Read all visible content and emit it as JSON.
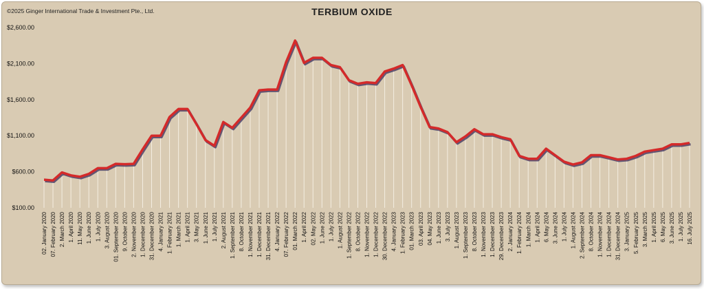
{
  "copyright": "©2025 Ginger International Trade & Investment Pte., Ltd.",
  "chart_data": {
    "type": "line",
    "title": "TERBIUM OXIDE",
    "xlabel": "",
    "ylabel": "",
    "ylim": [
      100,
      2600
    ],
    "yticks": [
      "$100.00",
      "$600.00",
      "$1,100.00",
      "$1,600.00",
      "$2,100.00",
      "$2,600.00"
    ],
    "ytick_values": [
      100,
      600,
      1100,
      1600,
      2100,
      2600
    ],
    "grid": "vertical drop lines",
    "line_color": "#d42a2a",
    "shadow_color": "#3a2d5c",
    "categories": [
      "02. January 2020",
      "07. February 2020",
      "2. March 2020",
      "1. April 2020",
      "11. May 2020",
      "1. June 2020",
      "1. July 2020",
      "3. August 2020",
      "01. September 2020",
      "9. October 2020",
      "2. November 2020",
      "1. December 2020",
      "31. December 2020",
      "4. January 2021",
      "1. February 2021",
      "1. March 2021",
      "1. April 2021",
      "3. May 2021",
      "1. June 2021",
      "1. July 2021",
      "2. August 2021",
      "1. September 2021",
      "8. October 2021",
      "1. November 2021",
      "1. December 2021",
      "31. December 2021",
      "4. January 2022",
      "07. February 2022",
      "01. March 2022",
      "1. April 2022",
      "02. May 2022",
      "1. June 2022",
      "1. July 2022",
      "1. August 2022",
      "1. September 2022",
      "8. October 2022",
      "1. November 2022",
      "1. December 2022",
      "30. December 2022",
      "4. January 2023",
      "1. February 2023",
      "01. March 2023",
      "03. April 2023",
      "04. May 2023",
      "1. June 2023",
      "3. July 2023",
      "1. August 2023",
      "1. September 2023",
      "8. October 2023",
      "1. November 2023",
      "1. December 2023",
      "29. December 2023",
      "2. January 2024",
      "1. February 2024",
      "1. March 2024",
      "1. April 2024",
      "6. May 2024",
      "3. June 2024",
      "1. July 2024",
      "1. August 2024",
      "2. September 2024",
      "8. October 2024",
      "1. November 2024",
      "1. December 2024",
      "31. December 2024",
      "3. January 2025",
      "5. February 2025",
      "3. March 2025",
      "1. April 2025",
      "6. May 2025",
      "3. June 2025",
      "1. July 2025",
      "16. July 2025"
    ],
    "values": [
      490,
      480,
      590,
      550,
      530,
      570,
      650,
      650,
      710,
      705,
      710,
      910,
      1100,
      1100,
      1360,
      1470,
      1470,
      1260,
      1040,
      960,
      1290,
      1210,
      1350,
      1490,
      1730,
      1740,
      1740,
      2120,
      2420,
      2110,
      2180,
      2180,
      2080,
      2050,
      1870,
      1820,
      1840,
      1830,
      1990,
      2030,
      2080,
      1800,
      1500,
      1220,
      1200,
      1150,
      1010,
      1090,
      1190,
      1120,
      1120,
      1080,
      1050,
      820,
      780,
      780,
      920,
      830,
      740,
      700,
      730,
      830,
      830,
      800,
      770,
      780,
      820,
      880,
      900,
      920,
      980,
      980,
      1000
    ]
  }
}
